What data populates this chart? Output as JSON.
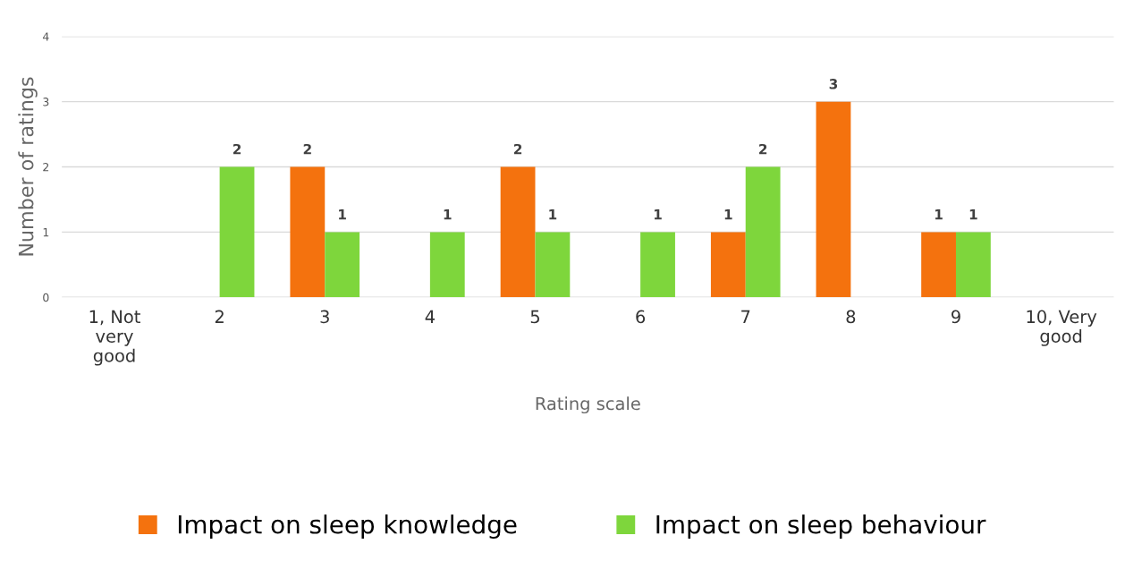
{
  "chart_data": {
    "type": "bar",
    "xlabel": "Rating scale",
    "ylabel": "Number of ratings",
    "categories": [
      "1, Not\nvery\ngood",
      "2",
      "3",
      "4",
      "5",
      "6",
      "7",
      "8",
      "9",
      "10, Very\ngood"
    ],
    "series": [
      {
        "name": "Impact on sleep knowledge",
        "color": "#f4720e",
        "values": [
          0,
          0,
          2,
          0,
          2,
          0,
          1,
          3,
          1,
          0
        ],
        "value_labels": [
          null,
          null,
          "2",
          null,
          "2",
          null,
          "1",
          "3",
          "1",
          null
        ]
      },
      {
        "name": "Impact on sleep behaviour",
        "color": "#7ed63c",
        "values": [
          0,
          2,
          1,
          1,
          1,
          1,
          2,
          0,
          1,
          0
        ],
        "value_labels": [
          null,
          "2",
          "1",
          "1",
          "1",
          "1",
          "2",
          null,
          "1",
          null
        ]
      }
    ],
    "ylim": [
      0,
      4
    ],
    "yticks": [
      0,
      1,
      2,
      3,
      4
    ],
    "grid": "y",
    "legend": "bottom"
  }
}
